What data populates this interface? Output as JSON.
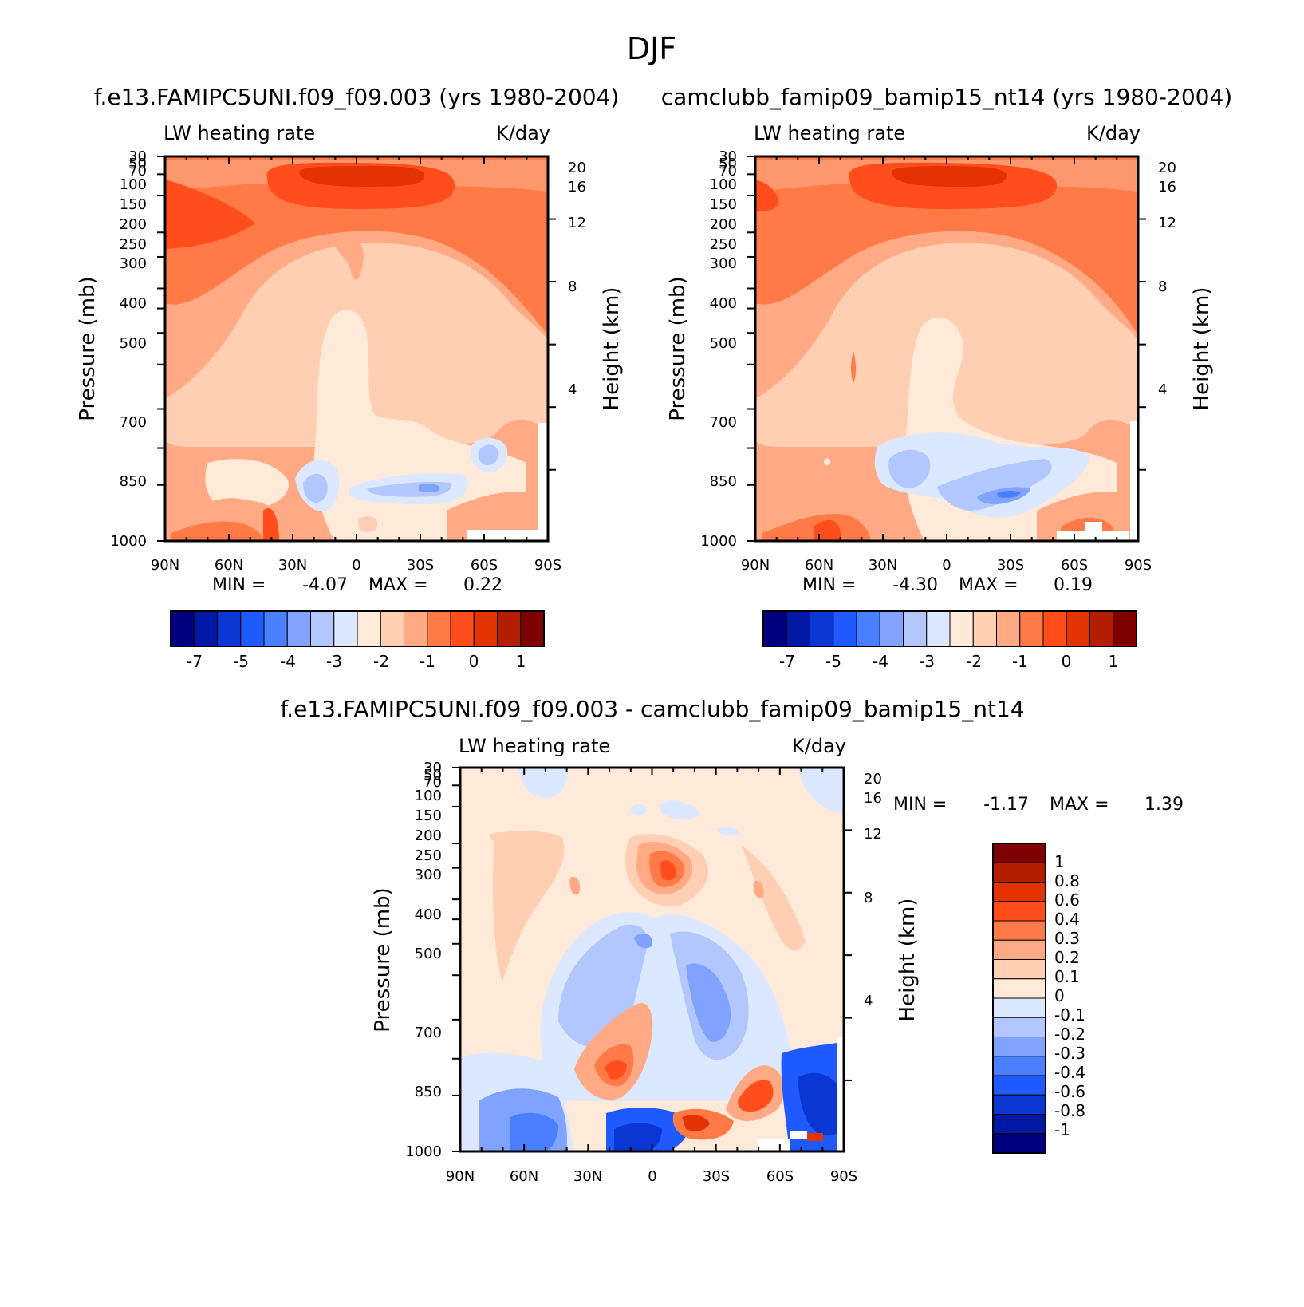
{
  "figure": {
    "title": "DJF"
  },
  "chart_data": [
    {
      "type": "heatmap",
      "id": "panel1",
      "title": "f.e13.FAMIPC5UNI.f09_f09.003 (yrs 1980-2004)",
      "left_label": "LW heating rate",
      "right_label": "K/day",
      "ylabel": "Pressure (mb)",
      "ylabel_right": "Height (km)",
      "x_ticks": [
        "90N",
        "60N",
        "30N",
        "0",
        "30S",
        "60S",
        "90S"
      ],
      "y_ticks": [
        "30",
        "50",
        "70",
        "100",
        "150",
        "200",
        "250",
        "300",
        "400",
        "500",
        "700",
        "850",
        "1000"
      ],
      "y_ticks_right": [
        "20",
        "16",
        "12",
        "8",
        "4"
      ],
      "xlim": [
        -90,
        90
      ],
      "ylim": [
        1000,
        30
      ],
      "min_label": "MIN =",
      "min_value": "-4.07",
      "max_label": "MAX =",
      "max_value": "0.22",
      "colorbar_labels": [
        "-7",
        "-5",
        "-4",
        "-3",
        "-2",
        "-1",
        "0",
        "1"
      ],
      "colorbar_colors": [
        "#00007f",
        "#0019a5",
        "#0a37d2",
        "#1e5aff",
        "#4a7fff",
        "#7fa3ff",
        "#b3c7ff",
        "#dbe8ff",
        "#ffe9d8",
        "#ffcfb3",
        "#ffaa85",
        "#ff7a47",
        "#ff4e1c",
        "#e23300",
        "#b31e00",
        "#7f0000"
      ]
    },
    {
      "type": "heatmap",
      "id": "panel2",
      "title": "camclubb_famip09_bamip15_nt14 (yrs 1980-2004)",
      "left_label": "LW heating rate",
      "right_label": "K/day",
      "ylabel": "Pressure (mb)",
      "ylabel_right": "Height (km)",
      "x_ticks": [
        "90N",
        "60N",
        "30N",
        "0",
        "30S",
        "60S",
        "90S"
      ],
      "y_ticks": [
        "30",
        "50",
        "70",
        "100",
        "150",
        "200",
        "250",
        "300",
        "400",
        "500",
        "700",
        "850",
        "1000"
      ],
      "y_ticks_right": [
        "20",
        "16",
        "12",
        "8",
        "4"
      ],
      "xlim": [
        -90,
        90
      ],
      "ylim": [
        1000,
        30
      ],
      "min_label": "MIN =",
      "min_value": "-4.30",
      "max_label": "MAX =",
      "max_value": "0.19",
      "colorbar_labels": [
        "-7",
        "-5",
        "-4",
        "-3",
        "-2",
        "-1",
        "0",
        "1"
      ],
      "colorbar_colors": [
        "#00007f",
        "#0019a5",
        "#0a37d2",
        "#1e5aff",
        "#4a7fff",
        "#7fa3ff",
        "#b3c7ff",
        "#dbe8ff",
        "#ffe9d8",
        "#ffcfb3",
        "#ffaa85",
        "#ff7a47",
        "#ff4e1c",
        "#e23300",
        "#b31e00",
        "#7f0000"
      ]
    },
    {
      "type": "heatmap",
      "id": "panel3",
      "title": "f.e13.FAMIPC5UNI.f09_f09.003 - camclubb_famip09_bamip15_nt14",
      "left_label": "LW heating rate",
      "right_label": "K/day",
      "ylabel": "Pressure (mb)",
      "ylabel_right": "Height (km)",
      "x_ticks": [
        "90N",
        "60N",
        "30N",
        "0",
        "30S",
        "60S",
        "90S"
      ],
      "y_ticks": [
        "30",
        "50",
        "70",
        "100",
        "150",
        "200",
        "250",
        "300",
        "400",
        "500",
        "700",
        "850",
        "1000"
      ],
      "y_ticks_right": [
        "20",
        "16",
        "12",
        "8",
        "4"
      ],
      "xlim": [
        -90,
        90
      ],
      "ylim": [
        1000,
        30
      ],
      "min_label": "MIN =",
      "min_value": "-1.17",
      "max_label": "MAX =",
      "max_value": "1.39",
      "colorbar_labels": [
        "1",
        "0.8",
        "0.6",
        "0.4",
        "0.3",
        "0.2",
        "0.1",
        "0",
        "-0.1",
        "-0.2",
        "-0.3",
        "-0.4",
        "-0.6",
        "-0.8",
        "-1"
      ],
      "colorbar_colors": [
        "#7f0000",
        "#b31e00",
        "#e23300",
        "#ff4e1c",
        "#ff7a47",
        "#ffaa85",
        "#ffcfb3",
        "#ffe9d8",
        "#dbe8ff",
        "#b3c7ff",
        "#7fa3ff",
        "#4a7fff",
        "#1e5aff",
        "#0a37d2",
        "#0019a5",
        "#00007f"
      ]
    }
  ]
}
